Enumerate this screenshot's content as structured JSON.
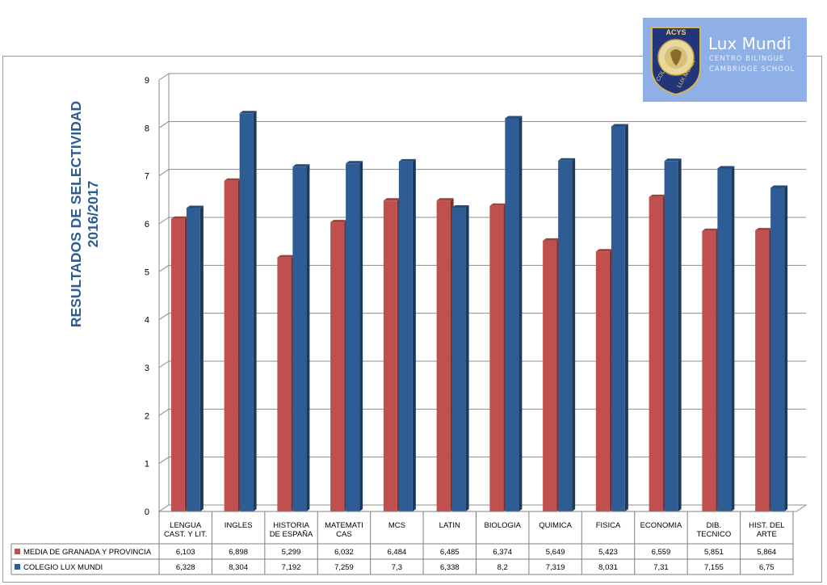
{
  "chart_data": {
    "type": "bar",
    "title": "RESULTADOS DE SELECTIVIDAD\n2016/2017",
    "categories": [
      "LENGUA\nCAST. Y LIT.",
      "INGLES",
      "HISTORIA\nDE ESPAÑA",
      "MATEMATI\nCAS",
      "MCS",
      "LATIN",
      "BIOLOGIA",
      "QUIMICA",
      "FISICA",
      "ECONOMIA",
      "DIB.\nTECNICO",
      "HIST. DEL\nARTE"
    ],
    "series": [
      {
        "name": "MEDIA DE GRANADA Y PROVINCIA",
        "color": "#c0504d",
        "values": [
          6.103,
          6.898,
          5.299,
          6.032,
          6.484,
          6.485,
          6.374,
          5.649,
          5.423,
          6.559,
          5.851,
          5.864
        ],
        "labels": [
          "6,103",
          "6,898",
          "5,299",
          "6,032",
          "6,484",
          "6,485",
          "6,374",
          "5,649",
          "5,423",
          "6,559",
          "5,851",
          "5,864"
        ]
      },
      {
        "name": "COLEGIO LUX MUNDI",
        "color": "#2e5d95",
        "values": [
          6.328,
          8.304,
          7.192,
          7.259,
          7.3,
          6.338,
          8.2,
          7.319,
          8.031,
          7.31,
          7.155,
          6.75
        ],
        "labels": [
          "6,328",
          "8,304",
          "7,192",
          "7,259",
          "7,3",
          "6,338",
          "8,2",
          "7,319",
          "8,031",
          "7,31",
          "7,155",
          "6,75"
        ]
      }
    ],
    "ylim": [
      0,
      9
    ],
    "yticks": [
      "0",
      "1",
      "2",
      "3",
      "4",
      "5",
      "6",
      "7",
      "8",
      "9"
    ],
    "grid": true,
    "legend": "data-table-below"
  },
  "logo": {
    "seal_text": "ACYS COLEGIO LUX MUNDI",
    "name": "Lux Mundi",
    "subtitle_1": "CENTRO BILINGUE",
    "subtitle_2": "CAMBRIDGE SCHOOL"
  }
}
